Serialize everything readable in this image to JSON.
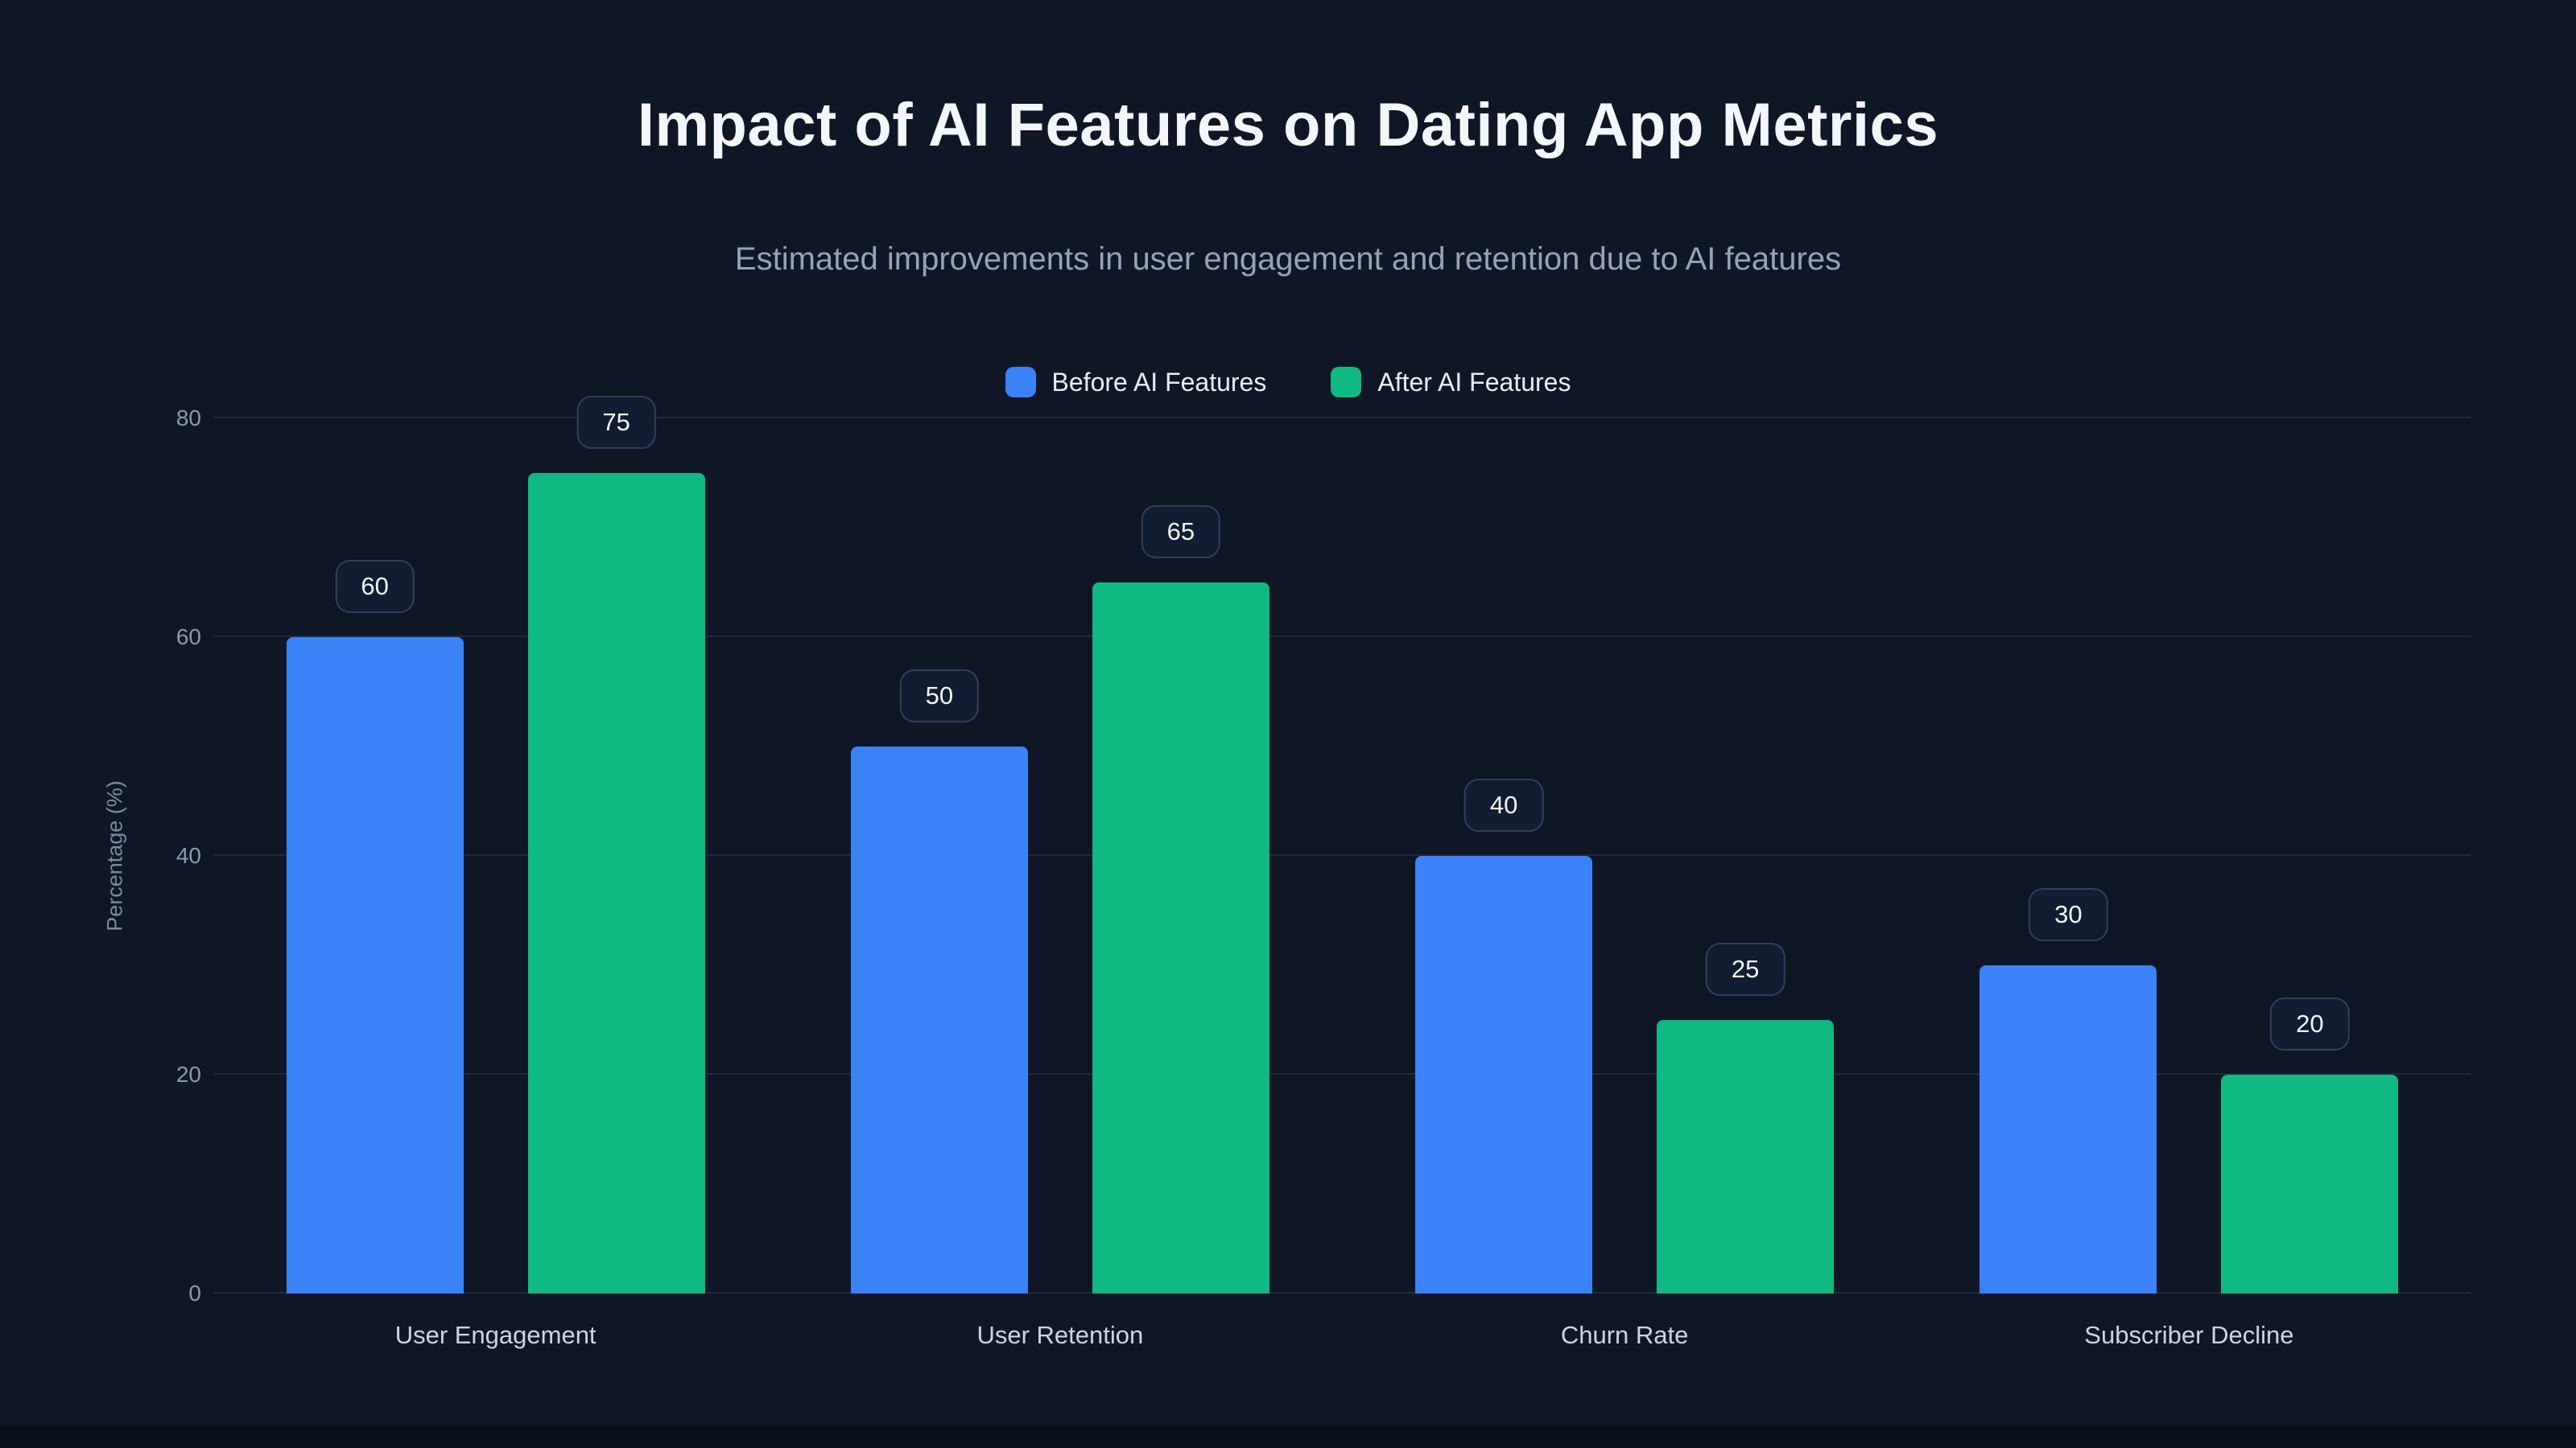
{
  "header": {
    "title": "Impact of AI Features on Dating App Metrics",
    "subtitle": "Estimated improvements in user engagement and retention due to AI features"
  },
  "colors": {
    "background": "#0f1726",
    "before_series": "#3b82f6",
    "after_series": "#10b981",
    "title_text": "#f3f6fa",
    "subtitle_text": "#94a3b8",
    "axis_text": "#8b99ad",
    "gridline": "rgba(148,163,184,0.14)",
    "value_pill_bg": "#111d33",
    "value_pill_border": "#31405a"
  },
  "chart_data": {
    "type": "bar",
    "title": "Impact of AI Features on Dating App Metrics",
    "subtitle": "Estimated improvements in user engagement and retention due to AI features",
    "categories": [
      "User Engagement",
      "User Retention",
      "Churn Rate",
      "Subscriber Decline"
    ],
    "series": [
      {
        "name": "Before AI Features",
        "color": "#3b82f6",
        "values": [
          60,
          50,
          40,
          30
        ]
      },
      {
        "name": "After AI Features",
        "color": "#10b981",
        "values": [
          75,
          65,
          25,
          20
        ]
      }
    ],
    "data_labels": [
      [
        60,
        50,
        40,
        30
      ],
      [
        75,
        65,
        25,
        20
      ]
    ],
    "xlabel": "",
    "ylabel": "Percentage (%)",
    "ylim": [
      0,
      80
    ],
    "yticks": [
      0,
      20,
      40,
      60,
      80
    ],
    "grid": true,
    "legend_position": "top"
  }
}
